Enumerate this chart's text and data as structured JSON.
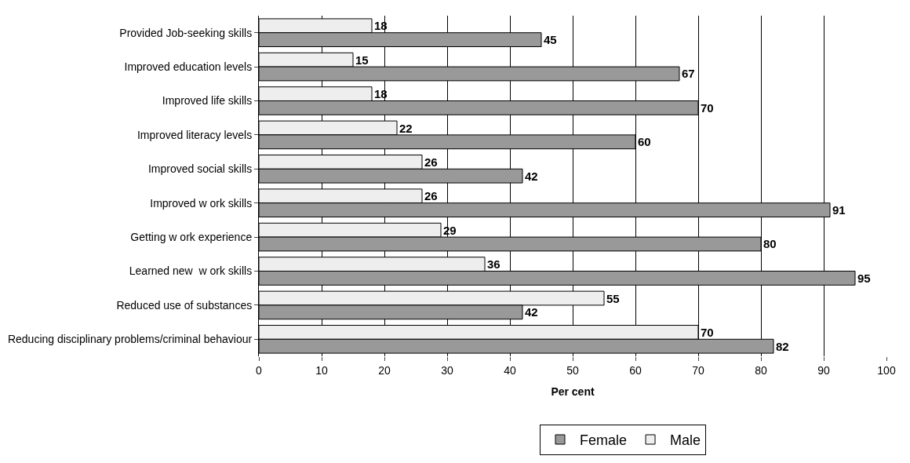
{
  "chart_data": {
    "type": "bar",
    "orientation": "horizontal",
    "categories": [
      "Provided Job-seeking skills",
      "Improved education levels",
      "Improved life skills",
      "Improved literacy levels",
      "Improved social skills",
      "Improved w ork skills",
      "Getting w ork experience",
      "Learned new  w ork skills",
      "Reduced use of substances",
      "Reducing disciplinary problems/criminal behaviour"
    ],
    "series": [
      {
        "name": "Male",
        "color": "#eeeeee",
        "values": [
          18,
          15,
          18,
          22,
          26,
          26,
          29,
          36,
          55,
          70
        ]
      },
      {
        "name": "Female",
        "color": "#999999",
        "values": [
          45,
          67,
          70,
          60,
          42,
          91,
          80,
          95,
          42,
          82
        ]
      }
    ],
    "xlabel": "Per cent",
    "xlim": [
      0,
      100
    ],
    "xticks": [
      0,
      10,
      20,
      30,
      40,
      50,
      60,
      70,
      80,
      90,
      100
    ],
    "grid": "x",
    "legend": "bottom",
    "data_labels": true
  }
}
